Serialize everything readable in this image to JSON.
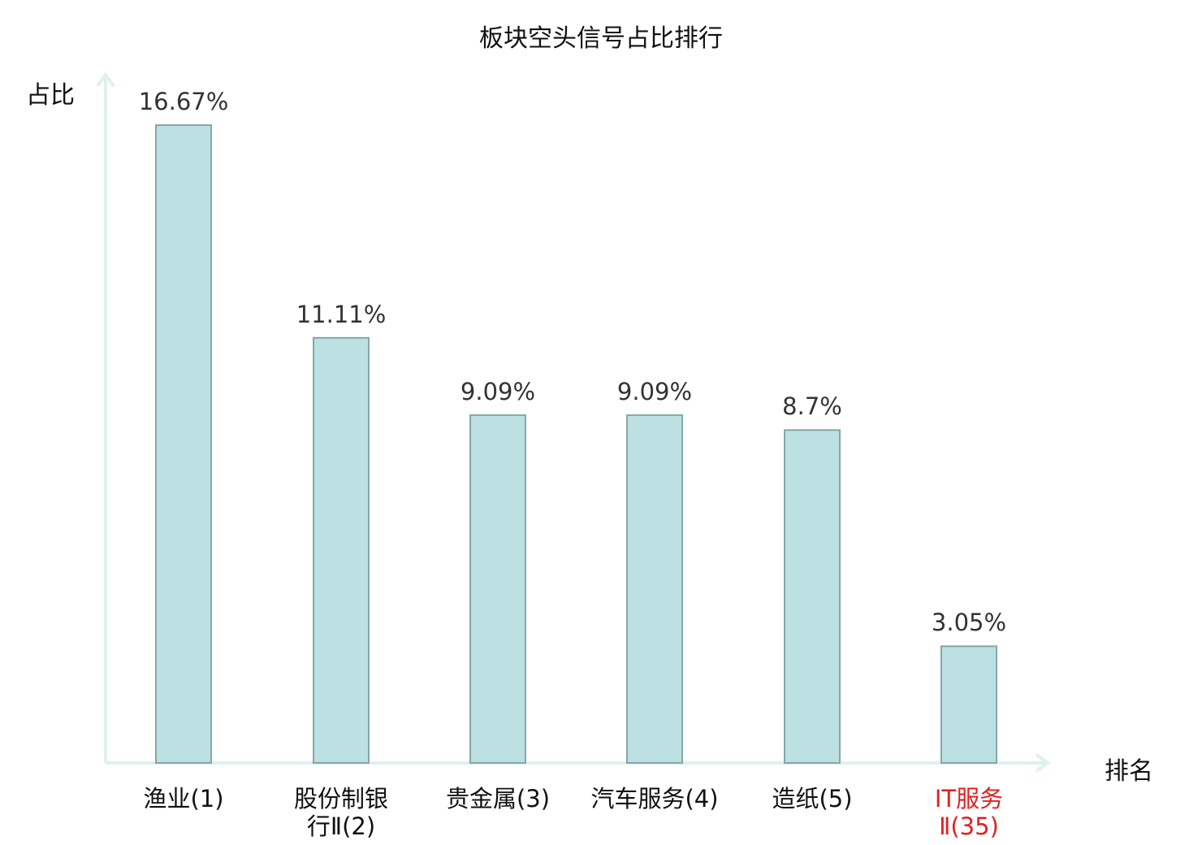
{
  "chart_data": {
    "type": "bar",
    "title": "板块空头信号占比排行",
    "ylabel": "占比",
    "xlabel": "排名",
    "categories": [
      {
        "name": "渔业",
        "rank": "(1)",
        "lines": [
          "渔业(1)"
        ],
        "highlight": false
      },
      {
        "name": "股份制银行Ⅱ",
        "rank": "(2)",
        "lines": [
          "股份制银",
          "行Ⅱ(2)"
        ],
        "highlight": false
      },
      {
        "name": "贵金属",
        "rank": "(3)",
        "lines": [
          "贵金属(3)"
        ],
        "highlight": false
      },
      {
        "name": "汽车服务",
        "rank": "(4)",
        "lines": [
          "汽车服务(4)"
        ],
        "highlight": false
      },
      {
        "name": "造纸",
        "rank": "(5)",
        "lines": [
          "造纸(5)"
        ],
        "highlight": false
      },
      {
        "name": "IT服务Ⅱ",
        "rank": "(35)",
        "lines": [
          "IT服务",
          "Ⅱ(35)"
        ],
        "highlight": true
      }
    ],
    "values": [
      16.67,
      11.11,
      9.09,
      9.09,
      8.7,
      3.05
    ],
    "value_labels": [
      "16.67%",
      "11.11%",
      "9.09%",
      "9.09%",
      "8.7%",
      "3.05%"
    ],
    "ylim": [
      0,
      18.4
    ],
    "grid": false,
    "colors": {
      "bar_fill": "#bde0e2",
      "bar_stroke": "#86a7a8",
      "axis": "#dff1ef",
      "highlight_label": "#e02020"
    }
  }
}
